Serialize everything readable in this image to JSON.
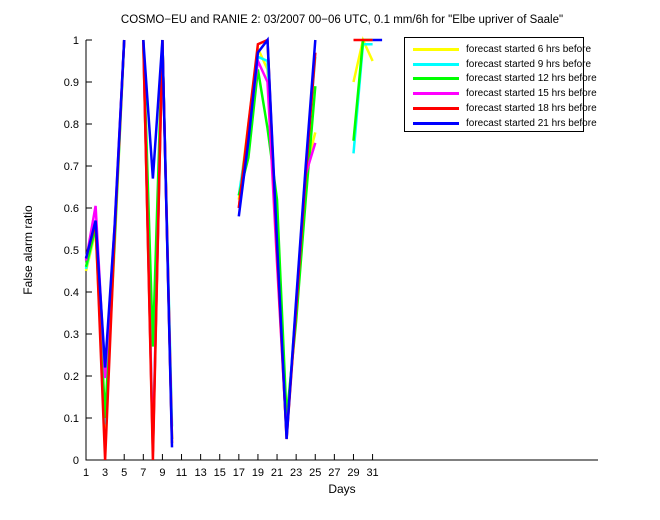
{
  "figure": {
    "background": "#ffffff"
  },
  "chart_data": {
    "type": "line",
    "title": "COSMO−EU and RANIE 2: 03/2007 00−06 UTC, 0.1 mm/6h for \"Elbe upriver of Saale\"",
    "xlabel": "Days",
    "ylabel": "False alarm ratio",
    "xlim": [
      1,
      54.6
    ],
    "ylim": [
      0,
      1
    ],
    "xticks": [
      1,
      3,
      5,
      7,
      9,
      11,
      13,
      15,
      17,
      19,
      21,
      23,
      25,
      27,
      29,
      31
    ],
    "yticks": [
      0,
      0.1,
      0.2,
      0.3,
      0.4,
      0.5,
      0.6,
      0.7,
      0.8,
      0.9,
      1
    ],
    "grid": false,
    "legend_position": "top-right",
    "axis_color": "#000000",
    "line_width": 2.5,
    "series": [
      {
        "name": "forecast started 6 hrs before",
        "color": "#ffff00",
        "segments": [
          [
            [
              1,
              0.45
            ],
            [
              2,
              0.545
            ],
            [
              3,
              0.075
            ],
            [
              4,
              0.51
            ],
            [
              5,
              1.0
            ]
          ],
          [
            [
              7,
              0.99
            ],
            [
              8,
              0.02
            ],
            [
              9,
              1.0
            ],
            [
              10,
              0.05
            ]
          ],
          [
            [
              17,
              0.62
            ],
            [
              18,
              0.8
            ],
            [
              19,
              0.98
            ],
            [
              20,
              0.93
            ],
            [
              21,
              0.48
            ],
            [
              22,
              0.06
            ],
            [
              23,
              0.37
            ],
            [
              24,
              0.69
            ],
            [
              25,
              0.78
            ]
          ],
          [
            [
              29,
              0.9
            ],
            [
              30,
              1.0
            ],
            [
              31,
              0.95
            ]
          ]
        ]
      },
      {
        "name": "forecast started 9 hrs before",
        "color": "#00ffff",
        "segments": [
          [
            [
              1,
              0.455
            ],
            [
              2,
              0.555
            ],
            [
              3,
              0.085
            ],
            [
              4,
              0.52
            ],
            [
              5,
              1.0
            ]
          ],
          [
            [
              7,
              1.0
            ],
            [
              8,
              0.03
            ],
            [
              9,
              1.0
            ],
            [
              10,
              0.08
            ]
          ],
          [
            [
              17,
              0.63
            ],
            [
              18,
              0.78
            ],
            [
              19,
              0.96
            ],
            [
              20,
              0.95
            ],
            [
              21,
              0.5
            ],
            [
              22,
              0.07
            ],
            [
              23,
              0.37
            ],
            [
              24,
              0.69
            ],
            [
              25,
              0.96
            ]
          ],
          [
            [
              29,
              0.73
            ],
            [
              30,
              0.99
            ],
            [
              31,
              0.99
            ]
          ]
        ]
      },
      {
        "name": "forecast started 12 hrs before",
        "color": "#00ff00",
        "segments": [
          [
            [
              1,
              0.46
            ],
            [
              2,
              0.555
            ],
            [
              3,
              0.1
            ],
            [
              4,
              0.53
            ],
            [
              5,
              1.0
            ]
          ],
          [
            [
              7,
              1.0
            ],
            [
              8,
              0.27
            ],
            [
              9,
              1.0
            ],
            [
              10,
              0.05
            ]
          ],
          [
            [
              17,
              0.63
            ],
            [
              18,
              0.72
            ],
            [
              19,
              0.93
            ],
            [
              20,
              0.79
            ],
            [
              21,
              0.62
            ],
            [
              22,
              0.1
            ],
            [
              23,
              0.33
            ],
            [
              24,
              0.62
            ],
            [
              25,
              0.89
            ]
          ],
          [
            [
              29,
              0.76
            ],
            [
              30,
              1.0
            ],
            [
              31,
              1.0
            ]
          ]
        ]
      },
      {
        "name": "forecast started 15 hrs before",
        "color": "#ff00ff",
        "segments": [
          [
            [
              1,
              0.475
            ],
            [
              2,
              0.605
            ],
            [
              3,
              0.195
            ],
            [
              4,
              0.56
            ],
            [
              5,
              1.0
            ]
          ],
          [
            [
              7,
              1.0
            ],
            [
              8,
              0.02
            ],
            [
              9,
              1.0
            ],
            [
              10,
              0.05
            ]
          ],
          [
            [
              17,
              0.6
            ],
            [
              18,
              0.78
            ],
            [
              19,
              0.95
            ],
            [
              20,
              0.9
            ],
            [
              21,
              0.47
            ],
            [
              22,
              0.06
            ],
            [
              23,
              0.36
            ],
            [
              24,
              0.68
            ],
            [
              25,
              0.755
            ]
          ]
        ]
      },
      {
        "name": "forecast started 18 hrs before",
        "color": "#ff0000",
        "segments": [
          [
            [
              1,
              0.48
            ],
            [
              2,
              0.565
            ],
            [
              3,
              0.0
            ],
            [
              4,
              0.54
            ],
            [
              5,
              1.0
            ]
          ],
          [
            [
              7,
              1.0
            ],
            [
              8,
              0.0
            ],
            [
              9,
              1.0
            ],
            [
              10,
              0.04
            ]
          ],
          [
            [
              17,
              0.6
            ],
            [
              18,
              0.8
            ],
            [
              19,
              0.99
            ],
            [
              20,
              1.0
            ],
            [
              21,
              0.5
            ],
            [
              22,
              0.05
            ],
            [
              23,
              0.36
            ],
            [
              24,
              0.68
            ],
            [
              25,
              0.97
            ]
          ],
          [
            [
              29,
              1.0
            ],
            [
              30,
              1.0
            ],
            [
              31,
              1.0
            ]
          ]
        ]
      },
      {
        "name": "forecast started 21 hrs before",
        "color": "#0000ff",
        "segments": [
          [
            [
              1,
              0.48
            ],
            [
              2,
              0.57
            ],
            [
              3,
              0.22
            ],
            [
              4,
              0.56
            ],
            [
              5,
              1.0
            ]
          ],
          [
            [
              7,
              1.0
            ],
            [
              8,
              0.67
            ],
            [
              9,
              1.0
            ],
            [
              10,
              0.03
            ]
          ],
          [
            [
              17,
              0.58
            ],
            [
              18,
              0.76
            ],
            [
              19,
              0.97
            ],
            [
              20,
              1.0
            ],
            [
              21,
              0.52
            ],
            [
              22,
              0.05
            ],
            [
              23,
              0.38
            ],
            [
              24,
              0.7
            ],
            [
              25,
              1.0
            ]
          ],
          [
            [
              31,
              1.0
            ],
            [
              32,
              1.0
            ]
          ]
        ]
      }
    ]
  }
}
